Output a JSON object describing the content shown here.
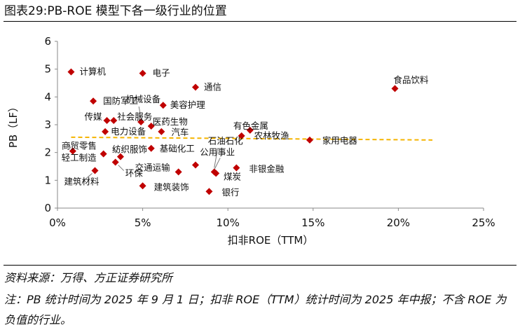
{
  "figure_title": "图表29:PB-ROE 模型下各一级行业的位置",
  "source": "资料来源：万得、方正证券研究所",
  "note": "注：PB 统计时间为 2025 年 9 月 1 日；扣非 ROE（TTM）统计时间为 2025 年中报；不含 ROE 为负值的行业。",
  "colors": {
    "marker": "#c00000",
    "trend": "#f5b400",
    "axis": "#8a8a8a",
    "text": "#111111"
  },
  "chart_data": {
    "type": "scatter",
    "title": "",
    "xlabel": "扣非ROE（TTM）",
    "ylabel": "PB（LF）",
    "xlim": [
      0,
      25
    ],
    "ylim": [
      0,
      6
    ],
    "x_ticks": [
      0,
      5,
      10,
      15,
      20,
      25
    ],
    "x_tick_labels": [
      "0%",
      "5%",
      "10%",
      "15%",
      "20%",
      "25%"
    ],
    "y_ticks": [
      0,
      1,
      2,
      3,
      4,
      5,
      6
    ],
    "y_tick_labels": [
      "0",
      "1",
      "2",
      "3",
      "4",
      "5",
      "6"
    ],
    "grid": false,
    "legend": "none",
    "points": [
      {
        "label": "计算机",
        "x": 0.8,
        "y": 4.9
      },
      {
        "label": "电子",
        "x": 5.0,
        "y": 4.85
      },
      {
        "label": "通信",
        "x": 8.1,
        "y": 4.35
      },
      {
        "label": "食品饮料",
        "x": 19.8,
        "y": 4.3
      },
      {
        "label": "国防军工",
        "x": 2.1,
        "y": 3.85
      },
      {
        "label": "机械设备",
        "x": 4.9,
        "y": 3.1
      },
      {
        "label": "美容护理",
        "x": 6.2,
        "y": 3.7
      },
      {
        "label": "传媒",
        "x": 2.9,
        "y": 3.15
      },
      {
        "label": "社会服务",
        "x": 3.3,
        "y": 3.15
      },
      {
        "label": "医药生物",
        "x": 5.5,
        "y": 2.95
      },
      {
        "label": "电力设备",
        "x": 2.8,
        "y": 2.75
      },
      {
        "label": "汽车",
        "x": 6.1,
        "y": 2.75
      },
      {
        "label": "有色金属",
        "x": 11.3,
        "y": 2.8
      },
      {
        "label": "农林牧渔",
        "x": 10.8,
        "y": 2.6
      },
      {
        "label": "家用电器",
        "x": 14.8,
        "y": 2.45
      },
      {
        "label": "商贸零售",
        "x": 0.9,
        "y": 2.05
      },
      {
        "label": "纺织服饰",
        "x": 3.7,
        "y": 1.85
      },
      {
        "label": "基础化工",
        "x": 5.5,
        "y": 2.15
      },
      {
        "label": "石油石化",
        "x": 9.2,
        "y": 1.3
      },
      {
        "label": "轻工制造",
        "x": 2.7,
        "y": 1.95
      },
      {
        "label": "建筑材料",
        "x": 2.2,
        "y": 1.35
      },
      {
        "label": "环保",
        "x": 3.4,
        "y": 1.65
      },
      {
        "label": "交通运输",
        "x": 7.1,
        "y": 1.3
      },
      {
        "label": "公用事业",
        "x": 9.3,
        "y": 1.25
      },
      {
        "label": "非银金融",
        "x": 10.5,
        "y": 1.45
      },
      {
        "label": "煤炭",
        "x": 8.1,
        "y": 1.55
      },
      {
        "label": "建筑装饰",
        "x": 5.0,
        "y": 0.8
      },
      {
        "label": "银行",
        "x": 8.9,
        "y": 0.6
      }
    ],
    "trend_line": {
      "style": "dashed",
      "x": [
        0.8,
        22.0
      ],
      "y": [
        2.55,
        2.45
      ]
    }
  }
}
